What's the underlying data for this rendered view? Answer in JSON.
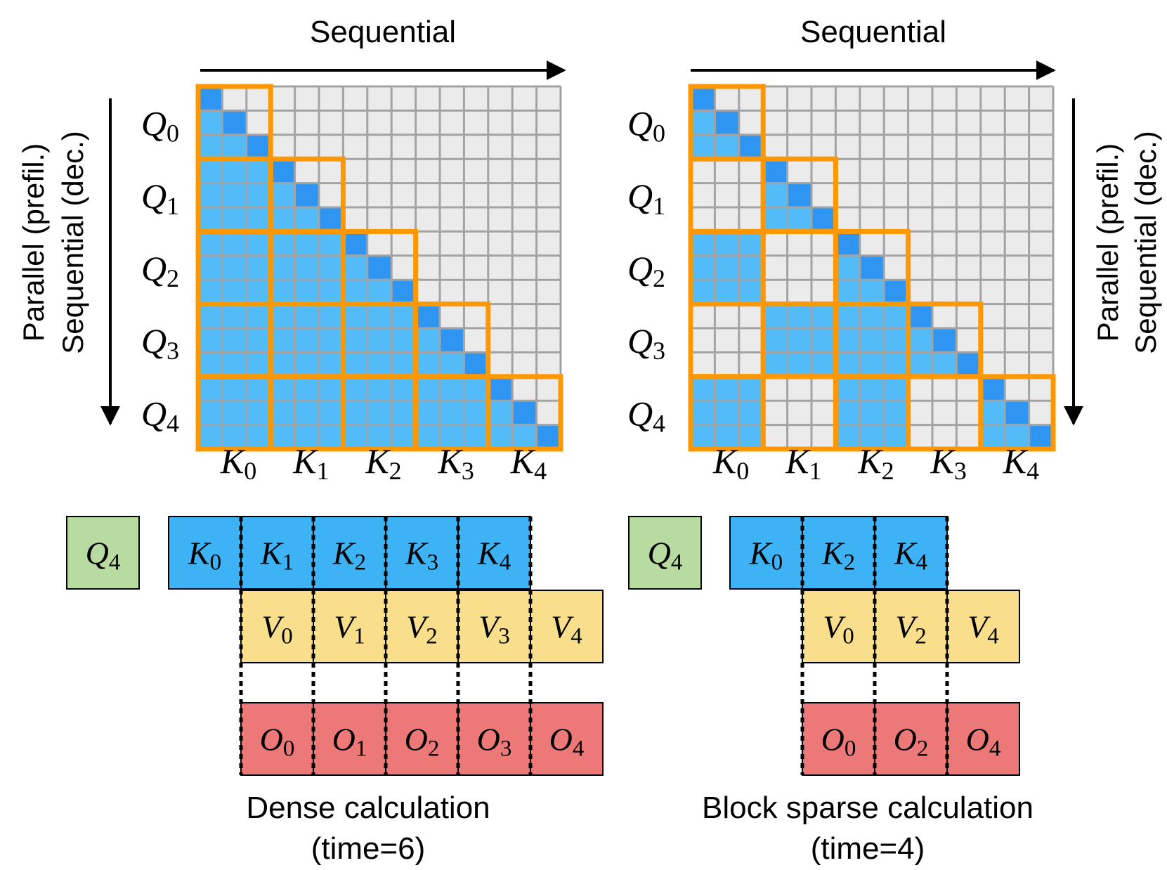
{
  "panels": [
    {
      "id": "dense",
      "top_label": "Sequential",
      "side_label_line1": "Parallel (prefil.)",
      "side_label_line2": "Sequential (dec.)",
      "q_labels": [
        [
          "Q",
          "0"
        ],
        [
          "Q",
          "1"
        ],
        [
          "Q",
          "2"
        ],
        [
          "Q",
          "3"
        ],
        [
          "Q",
          "4"
        ]
      ],
      "k_labels": [
        [
          "K",
          "0"
        ],
        [
          "K",
          "1"
        ],
        [
          "K",
          "2"
        ],
        [
          "K",
          "3"
        ],
        [
          "K",
          "4"
        ]
      ],
      "active_blocks": [
        [
          0
        ],
        [
          0,
          1
        ],
        [
          0,
          1,
          2
        ],
        [
          0,
          1,
          2,
          3
        ],
        [
          0,
          1,
          2,
          3,
          4
        ]
      ],
      "q_box": [
        "Q",
        "4"
      ],
      "k_row": [
        [
          "K",
          "0"
        ],
        [
          "K",
          "1"
        ],
        [
          "K",
          "2"
        ],
        [
          "K",
          "3"
        ],
        [
          "K",
          "4"
        ]
      ],
      "v_row": [
        [
          "V",
          "0"
        ],
        [
          "V",
          "1"
        ],
        [
          "V",
          "2"
        ],
        [
          "V",
          "3"
        ],
        [
          "V",
          "4"
        ]
      ],
      "o_row": [
        [
          "O",
          "0"
        ],
        [
          "O",
          "1"
        ],
        [
          "O",
          "2"
        ],
        [
          "O",
          "3"
        ],
        [
          "O",
          "4"
        ]
      ],
      "caption_line1": "Dense calculation",
      "caption_line2": "(time=6)"
    },
    {
      "id": "sparse",
      "top_label": "Sequential",
      "side_label_line1": "Parallel (prefil.)",
      "side_label_line2": "Sequential (dec.)",
      "q_labels": [
        [
          "Q",
          "0"
        ],
        [
          "Q",
          "1"
        ],
        [
          "Q",
          "2"
        ],
        [
          "Q",
          "3"
        ],
        [
          "Q",
          "4"
        ]
      ],
      "k_labels": [
        [
          "K",
          "0"
        ],
        [
          "K",
          "1"
        ],
        [
          "K",
          "2"
        ],
        [
          "K",
          "3"
        ],
        [
          "K",
          "4"
        ]
      ],
      "active_blocks": [
        [
          0
        ],
        [
          1
        ],
        [
          0,
          2
        ],
        [
          1,
          2,
          3
        ],
        [
          0,
          2,
          4
        ]
      ],
      "q_box": [
        "Q",
        "4"
      ],
      "k_row": [
        [
          "K",
          "0"
        ],
        [
          "K",
          "2"
        ],
        [
          "K",
          "4"
        ]
      ],
      "v_row": [
        [
          "V",
          "0"
        ],
        [
          "V",
          "2"
        ],
        [
          "V",
          "4"
        ]
      ],
      "o_row": [
        [
          "O",
          "0"
        ],
        [
          "O",
          "2"
        ],
        [
          "O",
          "4"
        ]
      ],
      "caption_line1": "Block sparse calculation",
      "caption_line2": "(time=4)"
    }
  ],
  "colors": {
    "grid_bg": "#ebebeb",
    "grid_line": "#a3a3a3",
    "cell_active": "#53bcf8",
    "cell_diag": "#2e96f2",
    "block_border": "#ff9800",
    "q_box": "#b7dba1",
    "k_box": "#3db2f4",
    "v_box": "#f9df8c",
    "o_box": "#ec7877",
    "ink": "#000000"
  }
}
